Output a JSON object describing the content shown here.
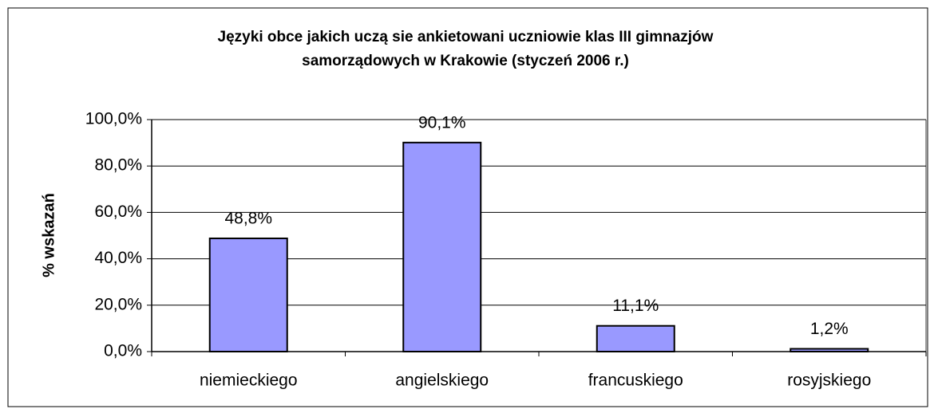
{
  "chart_data": {
    "type": "bar",
    "title": [
      "Języki obce jakich uczą sie ankietowani uczniowie klas III gimnazjów",
      "samorządowych w Krakowie (styczeń  2006 r.)"
    ],
    "ylabel": "% wskazań",
    "categories": [
      "niemieckiego",
      "angielskiego",
      "francuskiego",
      "rosyjskiego"
    ],
    "values": [
      48.8,
      90.1,
      11.1,
      1.2
    ],
    "value_labels": [
      "48,8%",
      "90,1%",
      "11,1%",
      "1,2%"
    ],
    "color": "#9999ff",
    "ylim": [
      0,
      100
    ],
    "yticks": [
      {
        "value": 0,
        "label": "0,0%"
      },
      {
        "value": 20,
        "label": "20,0%"
      },
      {
        "value": 40,
        "label": "40,0%"
      },
      {
        "value": 60,
        "label": "60,0%"
      },
      {
        "value": 80,
        "label": "80,0%"
      },
      {
        "value": 100,
        "label": "100,0%"
      }
    ],
    "grid": true
  }
}
